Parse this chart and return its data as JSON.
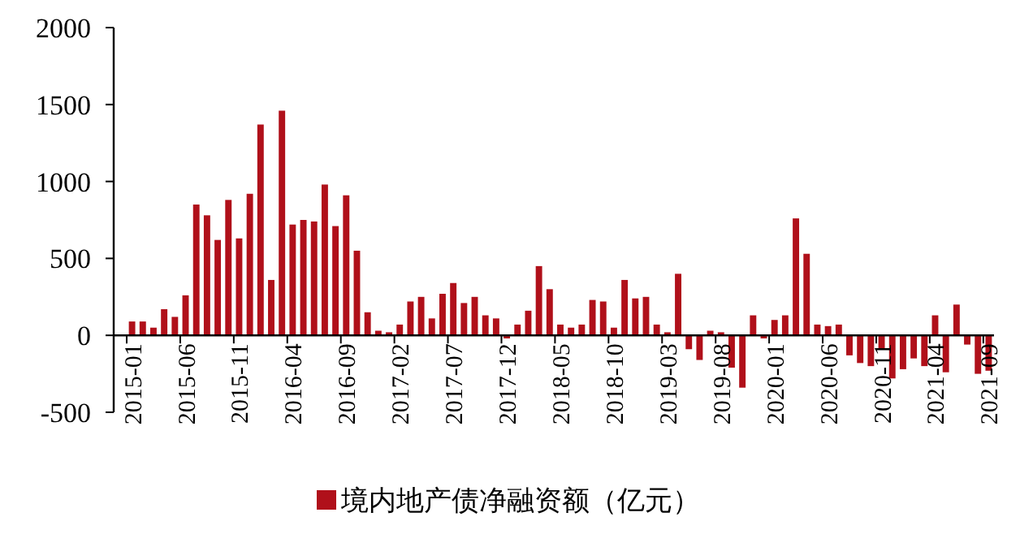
{
  "chart_data": {
    "type": "bar",
    "categories": [
      "2015-01",
      null,
      null,
      null,
      null,
      "2015-06",
      null,
      null,
      null,
      null,
      "2015-11",
      null,
      null,
      null,
      null,
      "2016-04",
      null,
      null,
      null,
      null,
      "2016-09",
      null,
      null,
      null,
      null,
      "2017-02",
      null,
      null,
      null,
      null,
      "2017-07",
      null,
      null,
      null,
      null,
      "2017-12",
      null,
      null,
      null,
      null,
      "2018-05",
      null,
      null,
      null,
      null,
      "2018-10",
      null,
      null,
      null,
      null,
      "2019-03",
      null,
      null,
      null,
      null,
      "2019-08",
      null,
      null,
      null,
      null,
      "2020-01",
      null,
      null,
      null,
      null,
      "2020-06",
      null,
      null,
      null,
      null,
      "2020-11",
      null,
      null,
      null,
      null,
      "2021-04",
      null,
      null,
      null,
      null,
      "2021-09"
    ],
    "series": [
      {
        "name": "境内地产债净融资额（亿元）",
        "color": "#b0101a",
        "values": [
          90,
          90,
          50,
          170,
          120,
          260,
          850,
          780,
          620,
          880,
          630,
          920,
          1370,
          360,
          1460,
          720,
          750,
          740,
          980,
          710,
          910,
          550,
          150,
          30,
          20,
          70,
          220,
          250,
          110,
          270,
          340,
          210,
          250,
          130,
          110,
          -20,
          70,
          160,
          450,
          300,
          70,
          50,
          70,
          230,
          220,
          50,
          360,
          240,
          250,
          70,
          20,
          400,
          -90,
          -160,
          30,
          20,
          -210,
          -340,
          130,
          -20,
          100,
          130,
          760,
          530,
          70,
          60,
          70,
          -130,
          -180,
          -200,
          -90,
          -280,
          -220,
          -150,
          -200,
          130,
          -240,
          200,
          -60,
          -250,
          -230
        ]
      }
    ],
    "ylim": [
      -500,
      2000
    ],
    "yticks": [
      -500,
      0,
      500,
      1000,
      1500,
      2000
    ],
    "legend": "bottom",
    "grid": false
  }
}
